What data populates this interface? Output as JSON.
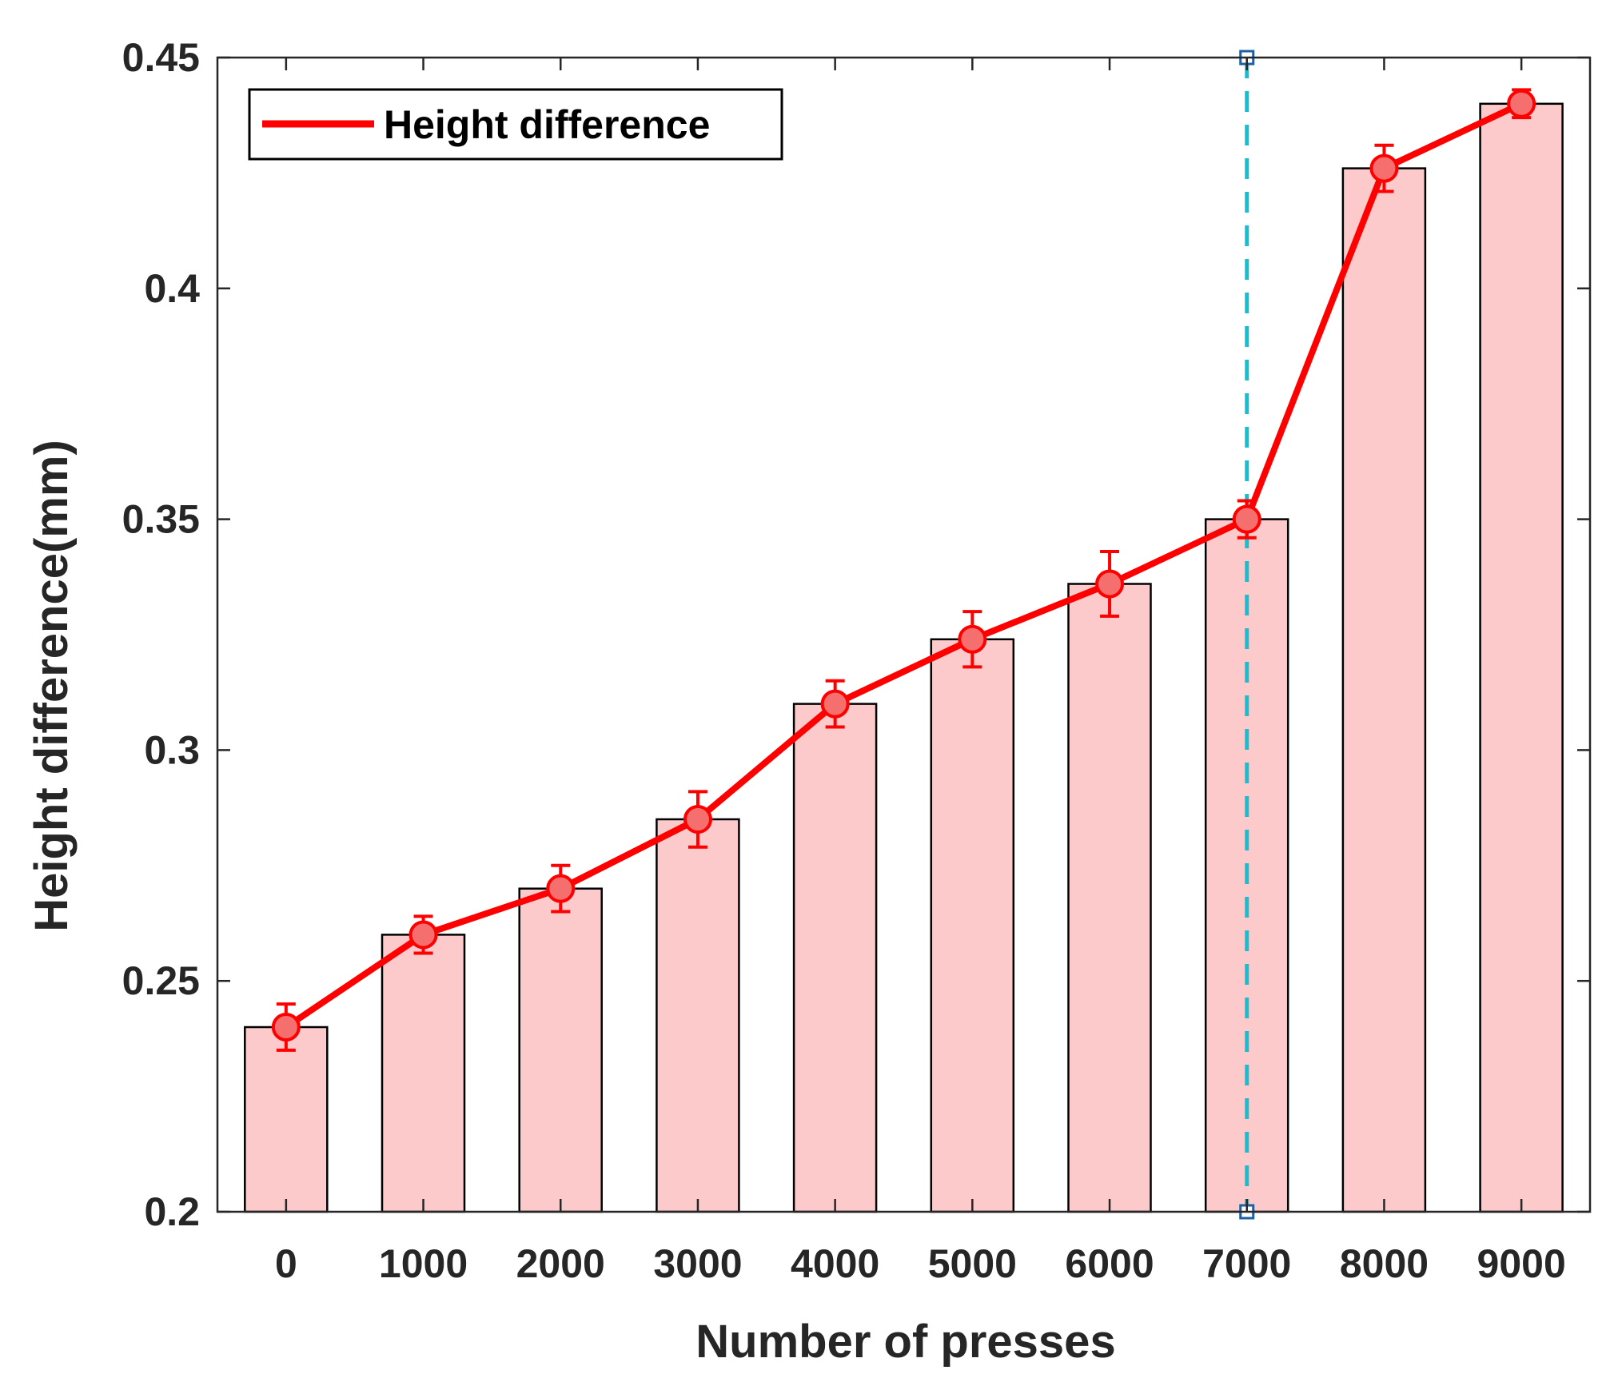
{
  "chart_data": {
    "type": "bar",
    "title": "",
    "xlabel": "Number of presses",
    "ylabel": "Height difference(mm)",
    "categories": [
      "0",
      "1000",
      "2000",
      "3000",
      "4000",
      "5000",
      "6000",
      "7000",
      "8000",
      "9000"
    ],
    "ylim": [
      0.2,
      0.45
    ],
    "yticks": [
      0.2,
      0.25,
      0.3,
      0.35,
      0.4,
      0.45
    ],
    "ytick_labels": [
      "0.2",
      "0.25",
      "0.3",
      "0.35",
      "0.4",
      "0.45"
    ],
    "grid": false,
    "bars": {
      "values": [
        0.24,
        0.26,
        0.27,
        0.285,
        0.31,
        0.324,
        0.336,
        0.35,
        0.426,
        0.44
      ],
      "fill": "#FCCACA",
      "edge": "#000000"
    },
    "series": [
      {
        "name": "Height difference",
        "type": "line-errorbar",
        "color": "#FF0000",
        "marker_fill": "#F56F6F",
        "values": [
          0.24,
          0.26,
          0.27,
          0.285,
          0.31,
          0.324,
          0.336,
          0.35,
          0.426,
          0.44
        ],
        "error": [
          0.005,
          0.004,
          0.005,
          0.006,
          0.005,
          0.006,
          0.007,
          0.004,
          0.005,
          0.003
        ]
      }
    ],
    "reference_line": {
      "category": "7000",
      "y_range": [
        0.2,
        0.45
      ],
      "color": "#17BECF",
      "marker_color": "#1F5FA0",
      "style": "dashed"
    },
    "legend": {
      "position": "top-left",
      "entries": [
        "Height difference"
      ]
    }
  }
}
